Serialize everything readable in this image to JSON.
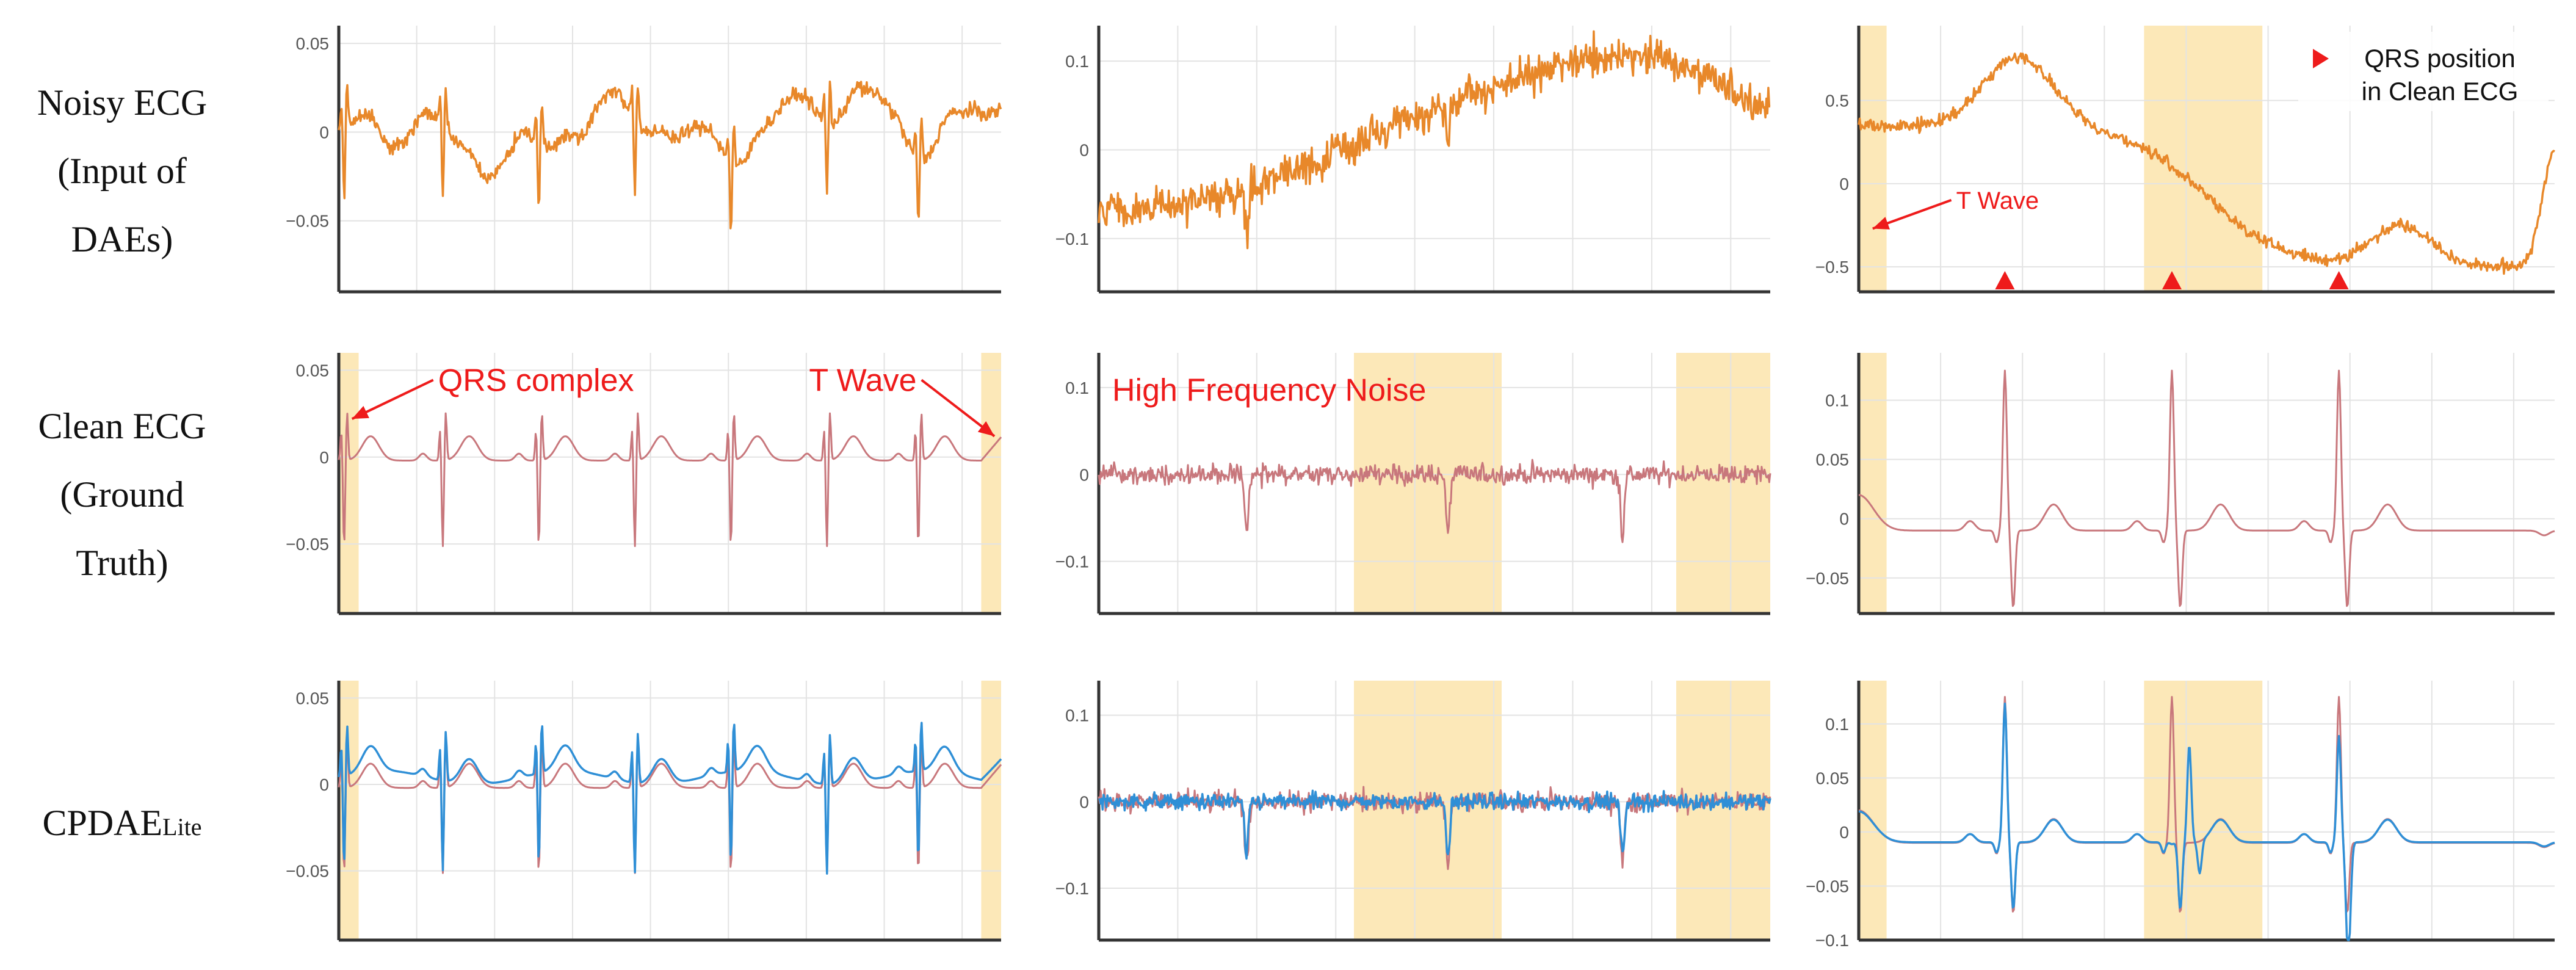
{
  "row_labels": {
    "noisy": [
      "Noisy ECG",
      "(Input of",
      "DAEs)"
    ],
    "clean": [
      "Clean ECG",
      "(Ground",
      "Truth)"
    ],
    "cpdae_main": "CPDAE",
    "cpdae_sub": "Lite"
  },
  "colors": {
    "noisy": "#e8882a",
    "clean": "#c8777c",
    "denoised": "#2f8fd6",
    "highlight": "#fce8b8",
    "annotation": "#ee1b1b",
    "grid": "#e3e3e3",
    "axis": "#333333"
  },
  "chart_data": [
    {
      "row": 0,
      "col": 0,
      "type": "line",
      "series": [
        "noisy"
      ],
      "ylim": [
        -0.09,
        0.06
      ],
      "yticks": [
        0.05,
        0,
        -0.05
      ],
      "yticklabels": [
        "0.05",
        "0",
        "−0.05"
      ],
      "highlights": [],
      "annotations": []
    },
    {
      "row": 0,
      "col": 1,
      "type": "line",
      "series": [
        "noisy"
      ],
      "ylim": [
        -0.16,
        0.14
      ],
      "yticks": [
        0.1,
        0,
        -0.1
      ],
      "yticklabels": [
        "0.1",
        "0",
        "−0.1"
      ],
      "highlights": [],
      "annotations": []
    },
    {
      "row": 0,
      "col": 2,
      "type": "line",
      "series": [
        "noisy"
      ],
      "ylim": [
        -0.65,
        0.95
      ],
      "yticks": [
        0.5,
        0,
        -0.5
      ],
      "yticklabels": [
        "0.5",
        "0",
        "−0.5"
      ],
      "highlights": [
        [
          0.0,
          0.04
        ],
        [
          0.41,
          0.58
        ]
      ],
      "qrs_markers": [
        0.21,
        0.45,
        0.69
      ],
      "legend": {
        "label_lines": [
          "QRS position",
          "in Clean ECG"
        ],
        "placement": "top-right"
      },
      "annotations": [
        {
          "text": "T Wave",
          "x": 0.14,
          "y": -0.15,
          "arrow_to": [
            0.02,
            -0.27
          ]
        }
      ]
    },
    {
      "row": 1,
      "col": 0,
      "type": "line",
      "series": [
        "clean"
      ],
      "ylim": [
        -0.09,
        0.06
      ],
      "yticks": [
        0.05,
        0,
        -0.05
      ],
      "yticklabels": [
        "0.05",
        "0",
        "−0.05"
      ],
      "highlights": [
        [
          0.0,
          0.03
        ],
        [
          0.97,
          1.0
        ]
      ],
      "annotations": [
        {
          "text": "QRS complex",
          "x": 0.15,
          "y": 0.038,
          "arrow_to": [
            0.02,
            0.022
          ]
        },
        {
          "text": "T Wave",
          "x": 0.71,
          "y": 0.038,
          "arrow_to": [
            0.99,
            0.012
          ]
        }
      ]
    },
    {
      "row": 1,
      "col": 1,
      "type": "line",
      "series": [
        "clean"
      ],
      "ylim": [
        -0.16,
        0.14
      ],
      "yticks": [
        0.1,
        0,
        -0.1
      ],
      "yticklabels": [
        "0.1",
        "0",
        "−0.1"
      ],
      "highlights": [
        [
          0.38,
          0.6
        ],
        [
          0.86,
          1.0
        ]
      ],
      "annotations": [
        {
          "text": "High Frequency Noise",
          "x": 0.02,
          "y": 0.085
        }
      ]
    },
    {
      "row": 1,
      "col": 2,
      "type": "line",
      "series": [
        "clean"
      ],
      "ylim": [
        -0.08,
        0.14
      ],
      "yticks": [
        0.1,
        0.05,
        0,
        -0.05
      ],
      "yticklabels": [
        "0.1",
        "0.05",
        "0",
        "−0.05"
      ],
      "highlights": [
        [
          0.0,
          0.04
        ]
      ],
      "annotations": []
    },
    {
      "row": 2,
      "col": 0,
      "type": "line",
      "series": [
        "clean",
        "denoised"
      ],
      "ylim": [
        -0.09,
        0.06
      ],
      "yticks": [
        0.05,
        0,
        -0.05
      ],
      "yticklabels": [
        "0.05",
        "0",
        "−0.05"
      ],
      "highlights": [
        [
          0.0,
          0.03
        ],
        [
          0.97,
          1.0
        ]
      ],
      "annotations": []
    },
    {
      "row": 2,
      "col": 1,
      "type": "line",
      "series": [
        "clean",
        "denoised"
      ],
      "ylim": [
        -0.16,
        0.14
      ],
      "yticks": [
        0.1,
        0,
        -0.1
      ],
      "yticklabels": [
        "0.1",
        "0",
        "−0.1"
      ],
      "highlights": [
        [
          0.38,
          0.6
        ],
        [
          0.86,
          1.0
        ]
      ],
      "annotations": []
    },
    {
      "row": 2,
      "col": 2,
      "type": "line",
      "series": [
        "clean",
        "denoised"
      ],
      "ylim": [
        -0.1,
        0.14
      ],
      "yticks": [
        0.1,
        0.05,
        0,
        -0.05,
        -0.1
      ],
      "yticklabels": [
        "0.1",
        "0.05",
        "0",
        "−0.05",
        "−0.1"
      ],
      "highlights": [
        [
          0.0,
          0.04
        ],
        [
          0.41,
          0.58
        ]
      ],
      "annotations": []
    }
  ]
}
